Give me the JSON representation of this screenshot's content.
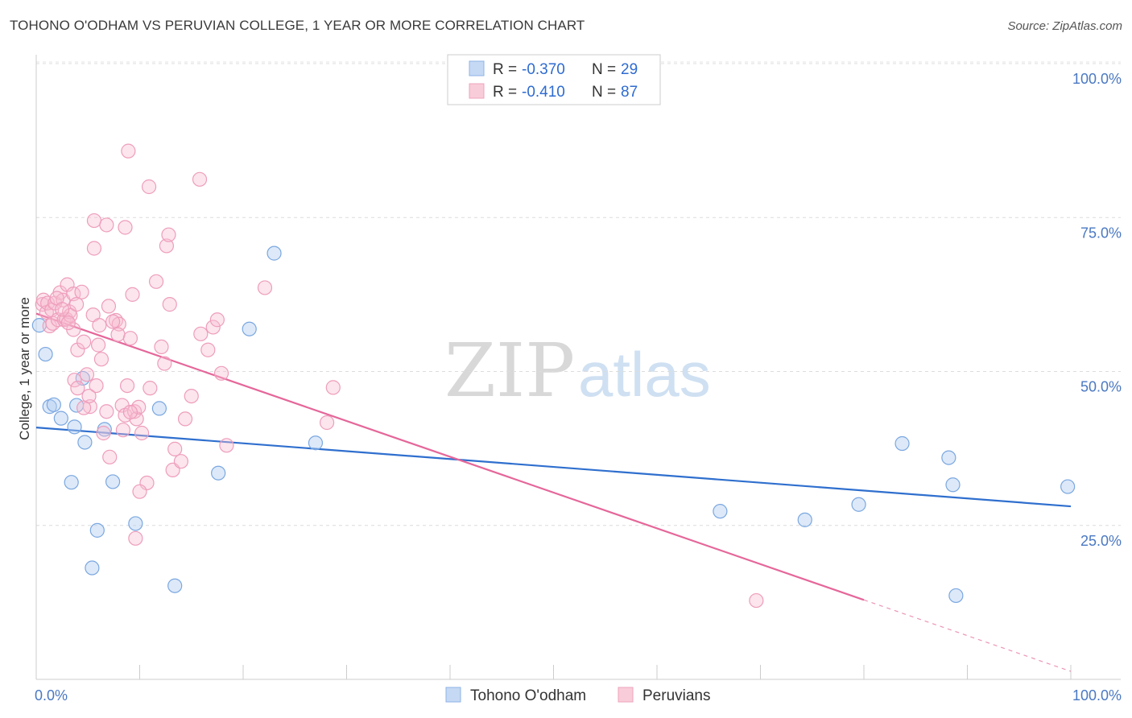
{
  "header": {
    "title": "TOHONO O'ODHAM VS PERUVIAN COLLEGE, 1 YEAR OR MORE CORRELATION CHART",
    "source": "Source: ZipAtlas.com"
  },
  "watermark": {
    "zip": "ZIP",
    "atlas": "atlas"
  },
  "legend": {
    "rows": [
      {
        "r_label": "R =",
        "r_value": "-0.370",
        "n_label": "N =",
        "n_value": "29",
        "color": "#a9c6ee"
      },
      {
        "r_label": "R =",
        "r_value": "-0.410",
        "n_label": "N =",
        "n_value": "87",
        "color": "#f4b5c8"
      }
    ]
  },
  "bottom_legend": [
    "Tohono O'odham",
    "Peruvians"
  ],
  "chart_data": {
    "type": "scatter",
    "ylabel": "College, 1 year or more",
    "xlabel": "",
    "x_tick_labels": [
      "0.0%",
      "100.0%"
    ],
    "y_tick_labels": [
      "100.0%",
      "75.0%",
      "50.0%",
      "25.0%"
    ],
    "xlim": [
      0,
      100
    ],
    "ylim": [
      0,
      100
    ],
    "grid": true,
    "legend_position": "top-center",
    "colors": {
      "blue": "#5b95d8",
      "blue_line": "#2f6fce",
      "pink": "#ef86a8",
      "pink_line": "#e5679a"
    },
    "series": [
      {
        "name": "Tohono O'odham",
        "color": "#5b95d8",
        "trend": {
          "x0": 0,
          "y0": 40.9,
          "x1": 100,
          "y1": 28.1
        },
        "points": [
          [
            0.3,
            57.5
          ],
          [
            0.9,
            52.8
          ],
          [
            1.3,
            44.3
          ],
          [
            1.7,
            44.6
          ],
          [
            2.4,
            42.4
          ],
          [
            3.7,
            41.0
          ],
          [
            3.4,
            32.0
          ],
          [
            3.9,
            44.5
          ],
          [
            4.7,
            38.5
          ],
          [
            5.4,
            18.1
          ],
          [
            6.6,
            40.6
          ],
          [
            7.4,
            32.1
          ],
          [
            5.9,
            24.2
          ],
          [
            9.6,
            25.3
          ],
          [
            11.9,
            44.0
          ],
          [
            13.4,
            15.2
          ],
          [
            17.6,
            33.5
          ],
          [
            20.6,
            56.9
          ],
          [
            23.0,
            69.2
          ],
          [
            27.0,
            38.4
          ],
          [
            66.1,
            27.3
          ],
          [
            74.3,
            25.9
          ],
          [
            79.5,
            28.4
          ],
          [
            83.7,
            38.3
          ],
          [
            88.2,
            36.0
          ],
          [
            88.6,
            31.6
          ],
          [
            88.9,
            13.6
          ],
          [
            99.7,
            31.3
          ],
          [
            4.5,
            48.9
          ]
        ]
      },
      {
        "name": "Peruvians",
        "color": "#ef86a8",
        "trend": {
          "x0": 0,
          "y0": 59.4,
          "x1": 80,
          "y1": 12.9,
          "dash_to_x": 100,
          "dash_to_y": 1.3
        },
        "points": [
          [
            0.6,
            60.9
          ],
          [
            0.7,
            61.6
          ],
          [
            1.0,
            59.6
          ],
          [
            1.1,
            61.1
          ],
          [
            1.3,
            57.4
          ],
          [
            1.5,
            60.0
          ],
          [
            1.6,
            57.8
          ],
          [
            1.8,
            61.1
          ],
          [
            2.1,
            58.4
          ],
          [
            2.3,
            62.8
          ],
          [
            2.6,
            61.6
          ],
          [
            2.7,
            58.4
          ],
          [
            2.9,
            58.5
          ],
          [
            3.0,
            64.1
          ],
          [
            3.2,
            59.7
          ],
          [
            3.3,
            59.1
          ],
          [
            3.6,
            62.6
          ],
          [
            3.6,
            56.8
          ],
          [
            4.0,
            53.5
          ],
          [
            4.4,
            62.9
          ],
          [
            3.7,
            48.6
          ],
          [
            4.0,
            47.3
          ],
          [
            4.6,
            54.8
          ],
          [
            4.9,
            49.5
          ],
          [
            5.2,
            44.3
          ],
          [
            5.5,
            59.2
          ],
          [
            5.8,
            47.7
          ],
          [
            6.1,
            57.5
          ],
          [
            6.3,
            52.0
          ],
          [
            6.5,
            40.0
          ],
          [
            4.6,
            44.1
          ],
          [
            6.8,
            43.5
          ],
          [
            7.1,
            36.1
          ],
          [
            5.6,
            70.0
          ],
          [
            5.6,
            74.5
          ],
          [
            6.8,
            73.8
          ],
          [
            7.7,
            58.3
          ],
          [
            8.0,
            57.7
          ],
          [
            7.4,
            58.1
          ],
          [
            7.9,
            56.0
          ],
          [
            8.3,
            44.5
          ],
          [
            8.6,
            42.9
          ],
          [
            8.4,
            40.5
          ],
          [
            8.8,
            47.7
          ],
          [
            9.1,
            55.4
          ],
          [
            9.3,
            62.5
          ],
          [
            8.6,
            73.4
          ],
          [
            9.5,
            43.5
          ],
          [
            9.7,
            42.3
          ],
          [
            9.9,
            44.2
          ],
          [
            10.2,
            40.0
          ],
          [
            10.7,
            31.9
          ],
          [
            10.0,
            30.5
          ],
          [
            9.6,
            22.9
          ],
          [
            11.0,
            47.3
          ],
          [
            11.6,
            64.6
          ],
          [
            12.4,
            51.3
          ],
          [
            12.9,
            60.9
          ],
          [
            13.2,
            34.0
          ],
          [
            13.4,
            37.4
          ],
          [
            10.9,
            80.0
          ],
          [
            12.6,
            70.4
          ],
          [
            12.8,
            72.2
          ],
          [
            14.0,
            35.4
          ],
          [
            14.4,
            42.3
          ],
          [
            15.0,
            46.0
          ],
          [
            15.9,
            56.1
          ],
          [
            16.6,
            53.5
          ],
          [
            17.1,
            57.2
          ],
          [
            17.5,
            58.4
          ],
          [
            17.9,
            49.7
          ],
          [
            18.4,
            38.0
          ],
          [
            15.8,
            81.2
          ],
          [
            8.9,
            85.8
          ],
          [
            12.1,
            54.0
          ],
          [
            22.1,
            63.6
          ],
          [
            28.1,
            41.7
          ],
          [
            28.7,
            47.4
          ],
          [
            69.6,
            12.8
          ],
          [
            2.0,
            61.9
          ],
          [
            2.5,
            60.1
          ],
          [
            3.1,
            57.9
          ],
          [
            3.9,
            60.9
          ],
          [
            5.1,
            46.0
          ],
          [
            6.0,
            54.3
          ],
          [
            7.0,
            60.6
          ],
          [
            9.1,
            43.4
          ]
        ]
      }
    ]
  }
}
